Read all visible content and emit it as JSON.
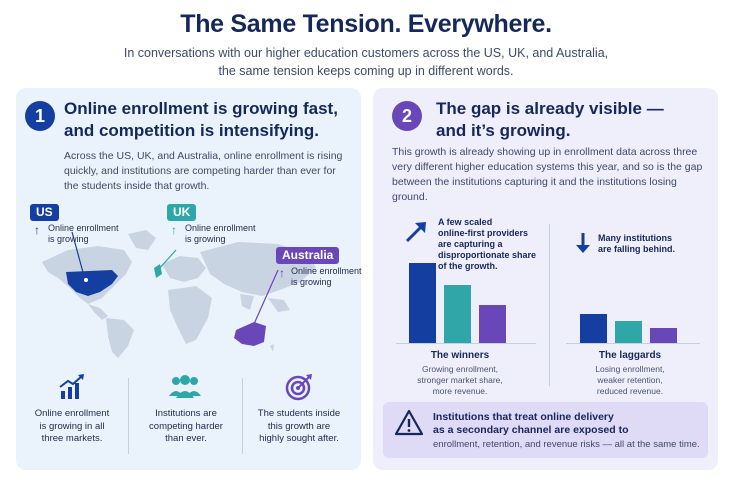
{
  "header": {
    "title": "The Same Tension. Everywhere.",
    "subtitle_line1": "In conversations with our higher education customers across the US, UK, and Australia,",
    "subtitle_line2": "the same tension keeps coming up in different words."
  },
  "left_panel": {
    "number": "1",
    "heading_line1": "Online enrollment is growing fast,",
    "heading_line2": "and competition is intensifying.",
    "body": "Across the US, UK, and Australia, online enrollment is rising quickly, and institutions are competing harder than ever for the students inside that growth.",
    "regions": [
      {
        "tag": "US",
        "note_line1": "Online enrollment",
        "note_line2": "is growing"
      },
      {
        "tag": "UK",
        "note_line1": "Online enrollment",
        "note_line2": "is growing"
      },
      {
        "tag": "Australia",
        "note_line1": "Online enrollment",
        "note_line2": "is growing"
      }
    ],
    "stats": [
      {
        "icon": "growth-chart-icon",
        "line1": "Online enrollment",
        "line2": "is growing in all",
        "line3": "three markets."
      },
      {
        "icon": "people-group-icon",
        "line1": "Institutions are",
        "line2": "competing harder",
        "line3": "than ever."
      },
      {
        "icon": "target-icon",
        "line1": "The students inside",
        "line2": "this growth are",
        "line3": "highly sought after."
      }
    ]
  },
  "right_panel": {
    "number": "2",
    "heading_line1": "The gap is already visible —",
    "heading_line2": "and it’s growing.",
    "body": "This growth is already showing up in enrollment data across three very different higher education systems this year, and so is the gap between the institutions capturing it and the institutions losing ground.",
    "winners_callout": [
      "A few scaled",
      "online-first providers",
      "are capturing a",
      "disproportionate share",
      "of the growth."
    ],
    "laggards_callout": [
      "Many institutions",
      "are falling behind."
    ],
    "winners": {
      "title": "The winners",
      "desc_line1": "Growing enrollment,",
      "desc_line2": "stronger market share,",
      "desc_line3": "more revenue.",
      "bar_levels": [
        1.0,
        0.72,
        0.47
      ]
    },
    "laggards": {
      "title": "The laggards",
      "desc_line1": "Losing enrollment,",
      "desc_line2": "weaker retention,",
      "desc_line3": "reduced revenue.",
      "bar_levels": [
        0.36,
        0.27,
        0.19
      ]
    },
    "warning": {
      "icon": "warning-triangle-icon",
      "line1": "Institutions that treat online delivery",
      "line2": "as a secondary channel are exposed to",
      "line3": "enrollment, retention, and revenue risks — all at the same time."
    }
  },
  "colors": {
    "navy": "#143fa0",
    "teal": "#2fa6a8",
    "purple": "#6a47b8",
    "map_gray": "#c9d4e3"
  }
}
